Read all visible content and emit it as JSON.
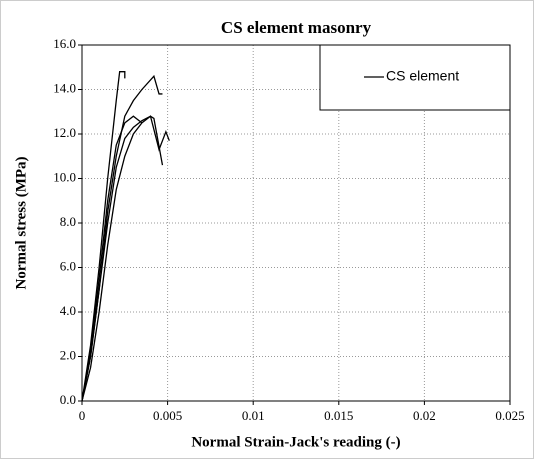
{
  "chart_data": {
    "type": "line",
    "title": "CS element masonry",
    "x_label": "Normal Strain-Jack's reading (-)",
    "y_label": "Normal stress (MPa)",
    "xlim": [
      0,
      0.025
    ],
    "xticks": [
      0,
      0.005,
      0.01,
      0.015,
      0.02,
      0.025
    ],
    "ylim": [
      0,
      16
    ],
    "yticks": [
      {
        "value": 0,
        "label": "0.0"
      },
      {
        "value": 2,
        "label": "2.0"
      },
      {
        "value": 4,
        "label": "4.0"
      },
      {
        "value": 6,
        "label": "6.0"
      },
      {
        "value": 8,
        "label": "8.0"
      },
      {
        "value": 10,
        "label": "10.0"
      },
      {
        "value": 12,
        "label": "12.0"
      },
      {
        "value": 14,
        "label": "14.0"
      },
      {
        "value": 16,
        "label": "16.0"
      }
    ],
    "grid": true,
    "legend": "upper right",
    "series": [
      {
        "name": "CS element",
        "color": "#000000",
        "x": [
          0,
          0.0005,
          0.001,
          0.0015,
          0.002,
          0.0022,
          0.0025,
          0.0025
        ],
        "values": [
          0,
          2.5,
          6,
          10,
          13.5,
          14.8,
          14.8,
          14.5
        ]
      },
      {
        "color": "#000000",
        "x": [
          0,
          0.0005,
          0.001,
          0.0015,
          0.002,
          0.0025,
          0.003,
          0.0035,
          0.0042,
          0.0045,
          0.0047
        ],
        "values": [
          0,
          2,
          5,
          8.5,
          11,
          12.8,
          13.5,
          14,
          14.6,
          13.8,
          13.8
        ]
      },
      {
        "color": "#000000",
        "x": [
          0,
          0.0005,
          0.001,
          0.0015,
          0.002,
          0.0025,
          0.003,
          0.0035,
          0.004,
          0.0045,
          0.0049,
          0.0051
        ],
        "values": [
          0,
          1.5,
          4,
          7,
          9.5,
          11,
          12,
          12.5,
          12.8,
          11.3,
          12.1,
          11.7
        ]
      },
      {
        "color": "#000000",
        "x": [
          0,
          0.0005,
          0.001,
          0.0015,
          0.002,
          0.0025,
          0.003,
          0.0035,
          0.004,
          0.0042,
          0.0047
        ],
        "values": [
          0,
          2,
          5,
          8,
          10.5,
          11.8,
          12.3,
          12.6,
          12.8,
          12.7,
          10.6
        ]
      },
      {
        "color": "#000000",
        "x": [
          0,
          0.0005,
          0.001,
          0.0015,
          0.002,
          0.0025,
          0.003,
          0.0035
        ],
        "values": [
          0,
          2.2,
          5.5,
          9,
          11.5,
          12.5,
          12.8,
          12.5
        ]
      }
    ]
  }
}
